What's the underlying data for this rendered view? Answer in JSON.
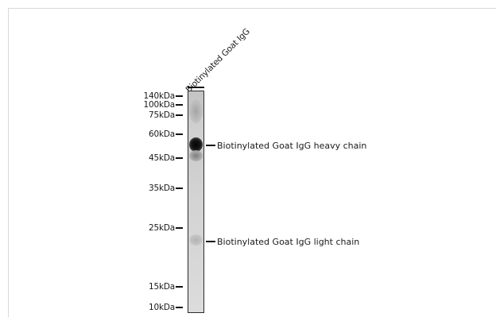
{
  "lane": {
    "label": "Biotinylated Goat IgG"
  },
  "markers": [
    {
      "label": "140kDa",
      "kda": 140
    },
    {
      "label": "100kDa",
      "kda": 100
    },
    {
      "label": "75kDa",
      "kda": 75
    },
    {
      "label": "60kDa",
      "kda": 60
    },
    {
      "label": "45kDa",
      "kda": 45
    },
    {
      "label": "35kDa",
      "kda": 35
    },
    {
      "label": "25kDa",
      "kda": 25
    },
    {
      "label": "15kDa",
      "kda": 15
    },
    {
      "label": "10kDa",
      "kda": 10
    }
  ],
  "annotations": {
    "heavy_chain": "Biotinylated Goat IgG heavy chain",
    "light_chain": "Biotinylated Goat IgG light chain"
  },
  "colors": {
    "lane_border": "#2b2b2b",
    "band_dark": "#050505",
    "text": "#1a1a1a"
  }
}
